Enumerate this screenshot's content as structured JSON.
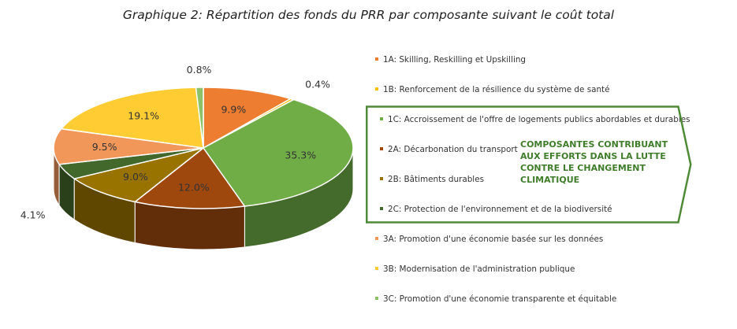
{
  "title": "Graphique 2: Répartition des fonds du PRR par composante suivant le coût total",
  "callout": {
    "text": "COMPOSANTES CONTRIBUANT AUX EFFORTS DANS LA LUTTE CONTRE LE CHANGEMENT CLIMATIQUE",
    "border_color": "#4e8a35"
  },
  "chart_data": {
    "type": "pie",
    "style": "3d",
    "title": "Graphique 2: Répartition des fonds du PRR par composante suivant le coût total",
    "categories": [
      "1A: Skilling, Reskilling et Upskilling",
      "1B: Renforcement de la résilience du système de santé",
      "1C: Accroissement de l'offre de logements publics abordables et durables",
      "2A: Décarbonation du transport",
      "2B: Bâtiments durables",
      "2C: Protection de l'environnement et de la biodiversité",
      "3A: Promotion d'une économie basée sur les données",
      "3B: Modernisation de l'administration publique",
      "3C: Promotion d'une économie transparente et équitable"
    ],
    "values": [
      9.9,
      0.4,
      35.3,
      12.0,
      9.0,
      4.1,
      9.5,
      19.1,
      0.8
    ],
    "labels": [
      "9.9%",
      "0.4%",
      "35.3%",
      "12.0%",
      "9.0%",
      "4.1%",
      "9.5%",
      "19.1%",
      "0.8%"
    ],
    "colors": [
      "#ed7d31",
      "#ffc000",
      "#70ad47",
      "#9e480e",
      "#997300",
      "#43682b",
      "#f1975a",
      "#ffcd33",
      "#8cc168"
    ],
    "legend_position": "right"
  }
}
